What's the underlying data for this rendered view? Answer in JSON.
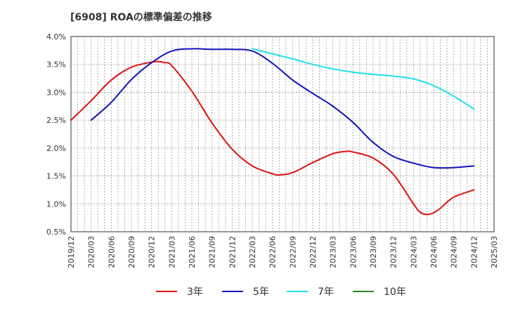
{
  "chart_data": {
    "type": "line",
    "title": "[6908]  ROAの標準偏差の推移",
    "xlabel": "",
    "ylabel": "",
    "ylim": [
      0.5,
      4.0
    ],
    "y_ticks": [
      "0.5%",
      "1.0%",
      "1.5%",
      "2.0%",
      "2.5%",
      "3.0%",
      "3.5%",
      "4.0%"
    ],
    "x_range": [
      "2019-12",
      "2025-03"
    ],
    "x_ticks": [
      "2019/12",
      "2020/03",
      "2020/06",
      "2020/09",
      "2020/12",
      "2021/03",
      "2021/06",
      "2021/09",
      "2021/12",
      "2022/03",
      "2022/06",
      "2022/09",
      "2022/12",
      "2023/03",
      "2023/06",
      "2023/09",
      "2023/12",
      "2024/03",
      "2024/06",
      "2024/09",
      "2024/12",
      "2025/03"
    ],
    "grid": true,
    "legend_position": "bottom",
    "series": [
      {
        "name": "3年",
        "color": "#dd1111",
        "x": [
          "2019-12",
          "2020-03",
          "2020-06",
          "2020-09",
          "2020-12",
          "2021-01",
          "2021-02",
          "2021-03",
          "2021-06",
          "2021-09",
          "2021-12",
          "2022-03",
          "2022-06",
          "2022-07",
          "2022-09",
          "2022-12",
          "2023-03",
          "2023-05",
          "2023-06",
          "2023-09",
          "2023-12",
          "2024-03",
          "2024-04",
          "2024-05",
          "2024-06",
          "2024-07",
          "2024-09",
          "2024-12"
        ],
        "values": [
          2.5,
          2.85,
          3.22,
          3.45,
          3.54,
          3.55,
          3.53,
          3.48,
          3.02,
          2.45,
          1.98,
          1.68,
          1.54,
          1.52,
          1.56,
          1.74,
          1.9,
          1.94,
          1.93,
          1.82,
          1.53,
          1.0,
          0.85,
          0.81,
          0.84,
          0.92,
          1.12,
          1.25
        ]
      },
      {
        "name": "5年",
        "color": "#1111bb",
        "x": [
          "2020-03",
          "2020-06",
          "2020-09",
          "2020-12",
          "2021-03",
          "2021-06",
          "2021-09",
          "2021-12",
          "2022-03",
          "2022-06",
          "2022-09",
          "2022-12",
          "2023-03",
          "2023-06",
          "2023-09",
          "2023-12",
          "2024-03",
          "2024-06",
          "2024-09",
          "2024-12"
        ],
        "values": [
          2.5,
          2.82,
          3.23,
          3.53,
          3.74,
          3.78,
          3.77,
          3.77,
          3.74,
          3.52,
          3.22,
          2.98,
          2.75,
          2.46,
          2.1,
          1.85,
          1.73,
          1.65,
          1.65,
          1.68
        ]
      },
      {
        "name": "7年",
        "color": "#22e0f0",
        "x": [
          "2022-03",
          "2022-06",
          "2022-09",
          "2022-12",
          "2023-03",
          "2023-06",
          "2023-09",
          "2023-12",
          "2024-03",
          "2024-06",
          "2024-09",
          "2024-12"
        ],
        "values": [
          3.78,
          3.69,
          3.6,
          3.5,
          3.42,
          3.36,
          3.32,
          3.29,
          3.24,
          3.12,
          2.93,
          2.7
        ]
      },
      {
        "name": "10年",
        "color": "#228b22",
        "x": [],
        "values": []
      }
    ]
  }
}
